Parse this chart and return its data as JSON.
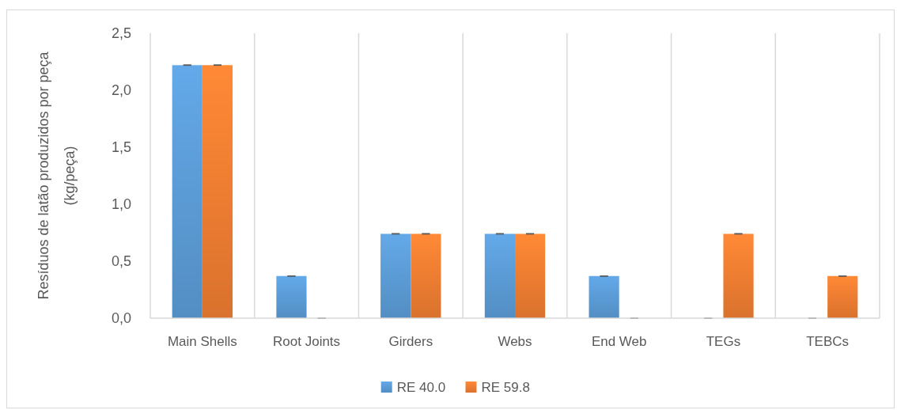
{
  "chart_data": {
    "type": "bar",
    "ylabel": "Resíduos de latão produzidos por peça\n(kg/peça)",
    "categories": [
      "Main Shells",
      "Root Joints",
      "Girders",
      "Webs",
      "End Web",
      "TEGs",
      "TEBCs"
    ],
    "series": [
      {
        "name": "RE 40.0",
        "color": "#5b9bd5",
        "values": [
          2.22,
          0.37,
          0.74,
          0.74,
          0.37,
          0,
          0
        ],
        "errors": [
          0,
          0,
          0,
          0,
          0,
          0,
          0
        ]
      },
      {
        "name": "RE 59.8",
        "color": "#ed7d31",
        "values": [
          2.22,
          0,
          0.74,
          0.74,
          0,
          0.74,
          0.37
        ],
        "errors": [
          0,
          0,
          0,
          0,
          0,
          0,
          0
        ]
      }
    ],
    "ylim": [
      0,
      2.5
    ],
    "yticks": [
      {
        "value": 0,
        "label": "0,0"
      },
      {
        "value": 0.5,
        "label": "0,5"
      },
      {
        "value": 1,
        "label": "1,0"
      },
      {
        "value": 1.5,
        "label": "1,5"
      },
      {
        "value": 2,
        "label": "2,0"
      },
      {
        "value": 2.5,
        "label": "2,5"
      }
    ],
    "grid": "x",
    "legend": "bottom"
  }
}
